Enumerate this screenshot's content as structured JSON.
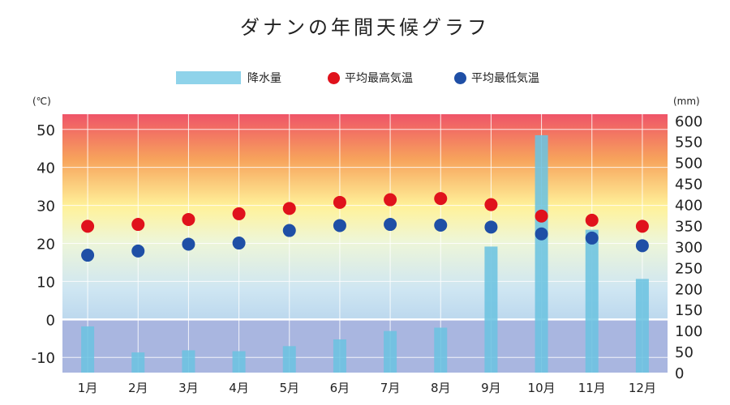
{
  "chart_data": {
    "type": "bar+scatter",
    "title": "ダナンの年間天候グラフ",
    "categories": [
      "1月",
      "2月",
      "3月",
      "4月",
      "5月",
      "6月",
      "7月",
      "8月",
      "9月",
      "10月",
      "11月",
      "12月"
    ],
    "series": [
      {
        "name": "降水量",
        "type": "bar",
        "axis": "right",
        "color": "#6cc3e0",
        "values": [
          110,
          48,
          53,
          51,
          63,
          79,
          99,
          107,
          300,
          565,
          340,
          223
        ]
      },
      {
        "name": "平均最高気温",
        "type": "scatter",
        "axis": "left",
        "color": "#e0121c",
        "values": [
          24.5,
          25,
          26.3,
          27.8,
          29.2,
          30.8,
          31.5,
          31.8,
          30.2,
          27.2,
          26.1,
          24.5
        ]
      },
      {
        "name": "平均最低気温",
        "type": "scatter",
        "axis": "left",
        "color": "#1f4fa6",
        "values": [
          16.9,
          18,
          19.8,
          20.1,
          23.4,
          24.7,
          25,
          24.8,
          24.3,
          22.5,
          21.4,
          19.4
        ]
      }
    ],
    "y_left": {
      "unit": "(℃)",
      "ticks": [
        -10,
        0,
        10,
        20,
        30,
        40,
        50
      ],
      "ylim": [
        -14,
        54
      ]
    },
    "y_right": {
      "unit": "(mm)",
      "ticks": [
        0,
        50,
        100,
        150,
        200,
        250,
        300,
        350,
        400,
        450,
        500,
        550,
        600
      ],
      "ylim": [
        0,
        615
      ]
    },
    "grid": true,
    "legend_position": "top"
  }
}
